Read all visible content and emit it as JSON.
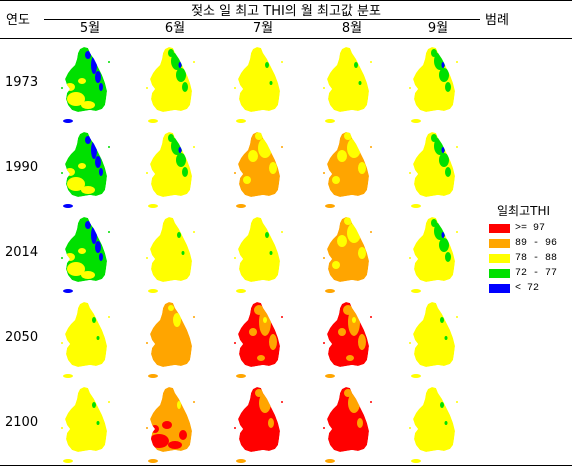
{
  "title": "젖소 일 최고 THI의 월 최고값 분포",
  "headers": {
    "year": "연도",
    "legend": "범례"
  },
  "months": [
    "5월",
    "6월",
    "7월",
    "8월",
    "9월"
  ],
  "years": [
    "1973",
    "1990",
    "2014",
    "2050",
    "2100"
  ],
  "legend": {
    "title": "일최고THI",
    "items": [
      {
        "label": ">= 97",
        "color": "#ff0000"
      },
      {
        "label": "89 - 96",
        "color": "#ffa500"
      },
      {
        "label": "78 - 88",
        "color": "#ffff00"
      },
      {
        "label": "72 - 77",
        "color": "#00e000"
      },
      {
        "label": "< 72",
        "color": "#0000ff"
      }
    ]
  },
  "category_colors": {
    "red": "#ff0000",
    "orange": "#ffa500",
    "yellow": "#ffff00",
    "green": "#00e000",
    "blue": "#0000ff"
  },
  "maps": [
    [
      "mostly-green",
      "yellow-green",
      "yellow",
      "yellow",
      "yellow-green"
    ],
    [
      "mostly-green",
      "yellow-green",
      "orange-yellow",
      "orange-yellow",
      "yellow-green"
    ],
    [
      "mostly-green",
      "yellow",
      "yellow",
      "orange-yellow",
      "yellow-green"
    ],
    [
      "yellow",
      "orange",
      "red-orange",
      "red-orange",
      "yellow"
    ],
    [
      "yellow",
      "orange-red",
      "red",
      "red",
      "yellow"
    ]
  ]
}
